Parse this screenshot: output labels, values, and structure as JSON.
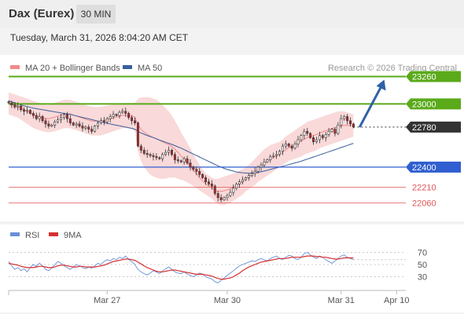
{
  "header": {
    "title": "Dax (Eurex)",
    "timeframe": "30 MIN",
    "datetime": "Tuesday, March 31, 2026 8:04:20 AM CET"
  },
  "legend": {
    "ma20_label": "MA 20 + Bollinger Bands",
    "ma50_label": "MA 50",
    "copyright": "Research © 2026 Trading Central",
    "rsi_label": "RSI",
    "ma9_label": "9MA"
  },
  "colors": {
    "candle_up": "#1a7a3a",
    "candle_down": "#b3282d",
    "bollinger_fill": "#f8d2d2",
    "ma20": "#f08a8a",
    "ma50": "#3a5f9e",
    "resistance": "#5aaa1a",
    "support": "#2f5fd0",
    "target": "#e05555",
    "last_price": "#333333",
    "arrow": "#2f62a8",
    "rsi": "#6a8fd8",
    "rsi_ma": "#d63030"
  },
  "chart_data": [
    {
      "type": "candlestick",
      "y_range": [
        21900,
        23450
      ],
      "x_range": [
        0,
        129
      ],
      "x_ticks": [
        {
          "label": "Mar 27",
          "x": 32
        },
        {
          "label": "Mar 30",
          "x": 71
        },
        {
          "label": "Mar 31",
          "x": 108
        },
        {
          "label": "Apr 10",
          "x": 126
        }
      ],
      "levels": [
        {
          "value": 23260,
          "label": "23260",
          "kind": "resistance"
        },
        {
          "value": 23000,
          "label": "23000",
          "kind": "resistance"
        },
        {
          "value": 22780,
          "label": "22780",
          "kind": "last_price"
        },
        {
          "value": 22400,
          "label": "22400",
          "kind": "support"
        },
        {
          "value": 22210,
          "label": "22210",
          "kind": "target"
        },
        {
          "value": 22060,
          "label": "22060",
          "kind": "target"
        }
      ],
      "projection": {
        "from": {
          "x": 114,
          "y": 22780
        },
        "to": {
          "x": 122,
          "y": 23230
        }
      },
      "closes": [
        23010,
        22990,
        22970,
        22980,
        22945,
        22930,
        22940,
        22910,
        22890,
        22860,
        22880,
        22840,
        22810,
        22790,
        22800,
        22830,
        22850,
        22870,
        22900,
        22860,
        22820,
        22800,
        22810,
        22790,
        22770,
        22780,
        22760,
        22740,
        22790,
        22820,
        22840,
        22830,
        22860,
        22880,
        22900,
        22890,
        22920,
        22930,
        22910,
        22870,
        22840,
        22820,
        22600,
        22560,
        22530,
        22520,
        22510,
        22500,
        22490,
        22480,
        22520,
        22540,
        22560,
        22520,
        22470,
        22460,
        22450,
        22480,
        22440,
        22400,
        22380,
        22360,
        22330,
        22300,
        22260,
        22240,
        22220,
        22150,
        22110,
        22090,
        22110,
        22130,
        22160,
        22200,
        22240,
        22260,
        22280,
        22300,
        22320,
        22340,
        22360,
        22400,
        22420,
        22450,
        22470,
        22500,
        22510,
        22520,
        22550,
        22600,
        22620,
        22600,
        22580,
        22620,
        22660,
        22700,
        22740,
        22720,
        22680,
        22640,
        22660,
        22700,
        22680,
        22710,
        22740,
        22760,
        22720,
        22800,
        22860,
        22880,
        22840,
        22810,
        22780
      ],
      "bollinger_upper": [
        23110,
        23100,
        23090,
        23080,
        23070,
        23060,
        23050,
        23040,
        23030,
        23020,
        23010,
        23000,
        22990,
        22990,
        23000,
        23010,
        23020,
        23030,
        23040,
        23040,
        23040,
        23030,
        23020,
        23010,
        23000,
        22990,
        22980,
        22975,
        22970,
        22970,
        22975,
        22980,
        22985,
        22990,
        22995,
        23000,
        23005,
        23010,
        23010,
        23010,
        23010,
        23010,
        23050,
        23060,
        23065,
        23065,
        23060,
        23050,
        23040,
        23020,
        22990,
        22960,
        22930,
        22890,
        22840,
        22790,
        22730,
        22680,
        22630,
        22580,
        22520,
        22470,
        22420,
        22380,
        22340,
        22320,
        22300,
        22290,
        22290,
        22300,
        22310,
        22320,
        22330,
        22340,
        22350,
        22370,
        22380,
        22400,
        22420,
        22450,
        22480,
        22510,
        22540,
        22570,
        22590,
        22610,
        22620,
        22630,
        22640,
        22660,
        22690,
        22710,
        22730,
        22750,
        22770,
        22790,
        22810,
        22830,
        22840,
        22850,
        22860,
        22870,
        22880,
        22890,
        22900,
        22910,
        22920,
        22930,
        22930,
        22930,
        22920,
        22910,
        22900
      ],
      "bollinger_lower": [
        22900,
        22890,
        22880,
        22870,
        22850,
        22830,
        22810,
        22790,
        22770,
        22760,
        22750,
        22740,
        22735,
        22730,
        22735,
        22740,
        22750,
        22760,
        22770,
        22770,
        22770,
        22760,
        22750,
        22740,
        22730,
        22720,
        22710,
        22700,
        22700,
        22700,
        22700,
        22710,
        22720,
        22730,
        22740,
        22750,
        22760,
        22770,
        22770,
        22770,
        22760,
        22740,
        22550,
        22460,
        22400,
        22360,
        22330,
        22310,
        22300,
        22290,
        22290,
        22290,
        22300,
        22300,
        22300,
        22290,
        22280,
        22270,
        22255,
        22240,
        22220,
        22200,
        22180,
        22160,
        22140,
        22120,
        22100,
        22070,
        22050,
        22040,
        22040,
        22050,
        22060,
        22080,
        22100,
        22120,
        22140,
        22170,
        22190,
        22210,
        22230,
        22260,
        22280,
        22300,
        22320,
        22340,
        22360,
        22380,
        22400,
        22420,
        22440,
        22460,
        22470,
        22480,
        22490,
        22500,
        22520,
        22530,
        22540,
        22550,
        22560,
        22580,
        22590,
        22600,
        22610,
        22620,
        22630,
        22640,
        22650,
        22660,
        22670,
        22680,
        22690
      ],
      "ma20": [
        23010,
        23000,
        22990,
        22980,
        22960,
        22945,
        22930,
        22915,
        22900,
        22890,
        22880,
        22870,
        22862,
        22860,
        22868,
        22875,
        22885,
        22895,
        22905,
        22905,
        22905,
        22895,
        22885,
        22875,
        22865,
        22855,
        22845,
        22838,
        22835,
        22835,
        22838,
        22845,
        22852,
        22860,
        22868,
        22875,
        22882,
        22890,
        22890,
        22890,
        22885,
        22875,
        22800,
        22760,
        22732,
        22712,
        22695,
        22680,
        22670,
        22655,
        22640,
        22625,
        22615,
        22595,
        22570,
        22540,
        22505,
        22475,
        22442,
        22410,
        22370,
        22335,
        22300,
        22270,
        22240,
        22220,
        22200,
        22180,
        22170,
        22170,
        22175,
        22185,
        22195,
        22210,
        22225,
        22245,
        22260,
        22285,
        22305,
        22330,
        22355,
        22385,
        22410,
        22435,
        22455,
        22475,
        22490,
        22505,
        22520,
        22540,
        22565,
        22585,
        22600,
        22615,
        22630,
        22645,
        22665,
        22680,
        22690,
        22700,
        22710,
        22725,
        22735,
        22745,
        22755,
        22765,
        22775,
        22785,
        22790,
        22795,
        22795,
        22795,
        22795
      ],
      "ma50": [
        23030,
        23020,
        23010,
        23000,
        22990,
        22982,
        22975,
        22968,
        22960,
        22955,
        22950,
        22945,
        22940,
        22935,
        22930,
        22925,
        22920,
        22915,
        22910,
        22905,
        22900,
        22893,
        22886,
        22879,
        22872,
        22865,
        22858,
        22851,
        22844,
        22837,
        22830,
        22823,
        22816,
        22810,
        22804,
        22798,
        22792,
        22786,
        22780,
        22774,
        22768,
        22760,
        22740,
        22725,
        22712,
        22700,
        22690,
        22680,
        22668,
        22656,
        22646,
        22636,
        22626,
        22616,
        22604,
        22592,
        22580,
        22566,
        22552,
        22538,
        22524,
        22510,
        22496,
        22482,
        22468,
        22454,
        22440,
        22426,
        22412,
        22400,
        22388,
        22378,
        22370,
        22362,
        22354,
        22350,
        22346,
        22344,
        22342,
        22344,
        22346,
        22350,
        22356,
        22362,
        22370,
        22378,
        22386,
        22394,
        22400,
        22408,
        22416,
        22424,
        22432,
        22440,
        22448,
        22456,
        22466,
        22476,
        22486,
        22496,
        22506,
        22516,
        22526,
        22536,
        22546,
        22556,
        22566,
        22576,
        22586,
        22596,
        22606,
        22616,
        22626
      ]
    },
    {
      "type": "line",
      "y_range": [
        10,
        90
      ],
      "y_ticks": [
        70,
        50,
        30
      ],
      "x_range": [
        0,
        129
      ],
      "series": [
        {
          "name": "RSI",
          "values": [
            55,
            48,
            42,
            45,
            40,
            43,
            38,
            45,
            50,
            47,
            52,
            48,
            42,
            40,
            44,
            50,
            55,
            52,
            48,
            45,
            42,
            46,
            50,
            48,
            45,
            43,
            46,
            44,
            48,
            52,
            50,
            55,
            58,
            56,
            60,
            58,
            62,
            60,
            64,
            58,
            55,
            50,
            42,
            38,
            35,
            33,
            36,
            40,
            38,
            35,
            40,
            43,
            46,
            42,
            38,
            36,
            35,
            38,
            34,
            32,
            30,
            33,
            36,
            34,
            30,
            28,
            26,
            22,
            20,
            24,
            28,
            32,
            36,
            40,
            44,
            48,
            50,
            52,
            54,
            56,
            55,
            58,
            60,
            58,
            56,
            60,
            62,
            64,
            60,
            58,
            62,
            65,
            64,
            60,
            58,
            62,
            68,
            70,
            66,
            62,
            60,
            64,
            62,
            58,
            55,
            52,
            56,
            60,
            64,
            66,
            62,
            60,
            58
          ]
        },
        {
          "name": "9MA",
          "values": [
            52,
            51,
            50,
            49,
            47,
            46,
            45,
            45,
            45,
            46,
            47,
            47,
            46,
            45,
            45,
            46,
            48,
            49,
            49,
            48,
            47,
            46,
            46,
            47,
            47,
            46,
            46,
            46,
            46,
            47,
            48,
            49,
            51,
            53,
            55,
            56,
            57,
            58,
            59,
            59,
            58,
            57,
            54,
            51,
            48,
            45,
            43,
            41,
            39,
            38,
            38,
            39,
            40,
            41,
            41,
            40,
            39,
            38,
            37,
            36,
            35,
            34,
            34,
            34,
            33,
            32,
            31,
            29,
            27,
            26,
            26,
            27,
            28,
            30,
            33,
            36,
            40,
            43,
            46,
            48,
            50,
            52,
            54,
            55,
            56,
            57,
            58,
            59,
            60,
            60,
            60,
            61,
            62,
            62,
            62,
            62,
            63,
            64,
            64,
            64,
            63,
            63,
            62,
            62,
            61,
            60,
            59,
            59,
            60,
            61,
            61,
            61,
            61
          ]
        }
      ],
      "x_ticks": [
        {
          "label": "Mar 27",
          "x": 32
        },
        {
          "label": "Mar 30",
          "x": 71
        },
        {
          "label": "Mar 31",
          "x": 108
        },
        {
          "label": "Apr 10",
          "x": 126
        }
      ]
    }
  ]
}
